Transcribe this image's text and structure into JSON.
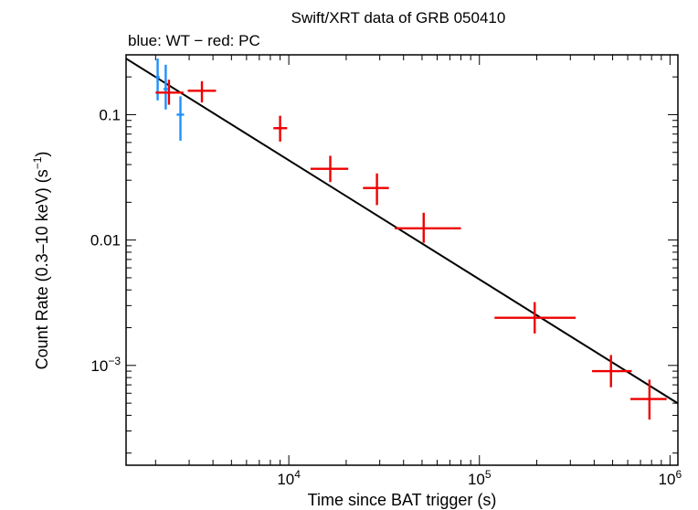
{
  "chart_data": {
    "type": "scatter",
    "title": "Swift/XRT data of GRB 050410",
    "subtitle": "blue: WT − red: PC",
    "xlabel": "Time since BAT trigger (s)",
    "ylabel": {
      "base": "Count Rate (0.3–10 keV) (s",
      "exp": "−1",
      "close": ")"
    },
    "xscale": "log",
    "yscale": "log",
    "xlim": [
      1400,
      1100000
    ],
    "ylim": [
      0.00016,
      0.3
    ],
    "x_ticks": [
      {
        "value": 10000,
        "base": "10",
        "exp": "4"
      },
      {
        "value": 100000,
        "base": "10",
        "exp": "5"
      },
      {
        "value": 1000000,
        "base": "10",
        "exp": "6"
      }
    ],
    "y_ticks": [
      {
        "value": 0.1,
        "label": "0.1",
        "base": "",
        "exp": ""
      },
      {
        "value": 0.01,
        "label": "0.01",
        "base": "",
        "exp": ""
      },
      {
        "value": 0.001,
        "label": "",
        "base": "10",
        "exp": "−3"
      }
    ],
    "series": [
      {
        "name": "WT",
        "color": "#1e90ff",
        "points": [
          {
            "x": 2050,
            "xerr": [
              2000,
              2100
            ],
            "y": 0.2,
            "yerr": [
              0.13,
              0.28
            ]
          },
          {
            "x": 2260,
            "xerr": [
              2200,
              2320
            ],
            "y": 0.16,
            "yerr": [
              0.11,
              0.25
            ]
          },
          {
            "x": 2700,
            "xerr": [
              2580,
              2820
            ],
            "y": 0.1,
            "yerr": [
              0.062,
              0.14
            ]
          }
        ]
      },
      {
        "name": "PC",
        "color": "#ee0000",
        "points": [
          {
            "x": 2350,
            "xerr": [
              2000,
              2800
            ],
            "y": 0.15,
            "yerr": [
              0.12,
              0.19
            ]
          },
          {
            "x": 3500,
            "xerr": [
              2950,
              4150
            ],
            "y": 0.155,
            "yerr": [
              0.125,
              0.185
            ]
          },
          {
            "x": 9000,
            "xerr": [
              8300,
              9800
            ],
            "y": 0.078,
            "yerr": [
              0.061,
              0.098
            ]
          },
          {
            "x": 16500,
            "xerr": [
              13000,
              20500
            ],
            "y": 0.037,
            "yerr": [
              0.029,
              0.047
            ]
          },
          {
            "x": 29000,
            "xerr": [
              24500,
              33500
            ],
            "y": 0.026,
            "yerr": [
              0.019,
              0.034
            ]
          },
          {
            "x": 51000,
            "xerr": [
              36000,
              80000
            ],
            "y": 0.0124,
            "yerr": [
              0.0095,
              0.0165
            ]
          },
          {
            "x": 195000,
            "xerr": [
              120000,
              320000
            ],
            "y": 0.0024,
            "yerr": [
              0.0018,
              0.0032
            ]
          },
          {
            "x": 490000,
            "xerr": [
              390000,
              630000
            ],
            "y": 0.0009,
            "yerr": [
              0.00067,
              0.00121
            ]
          },
          {
            "x": 780000,
            "xerr": [
              620000,
              960000
            ],
            "y": 0.00054,
            "yerr": [
              0.00037,
              0.00077
            ]
          }
        ]
      }
    ],
    "model": {
      "name": "power-law fit",
      "color": "#000000",
      "x": [
        1400,
        1100000
      ],
      "y": [
        0.28,
        0.000498
      ]
    }
  }
}
